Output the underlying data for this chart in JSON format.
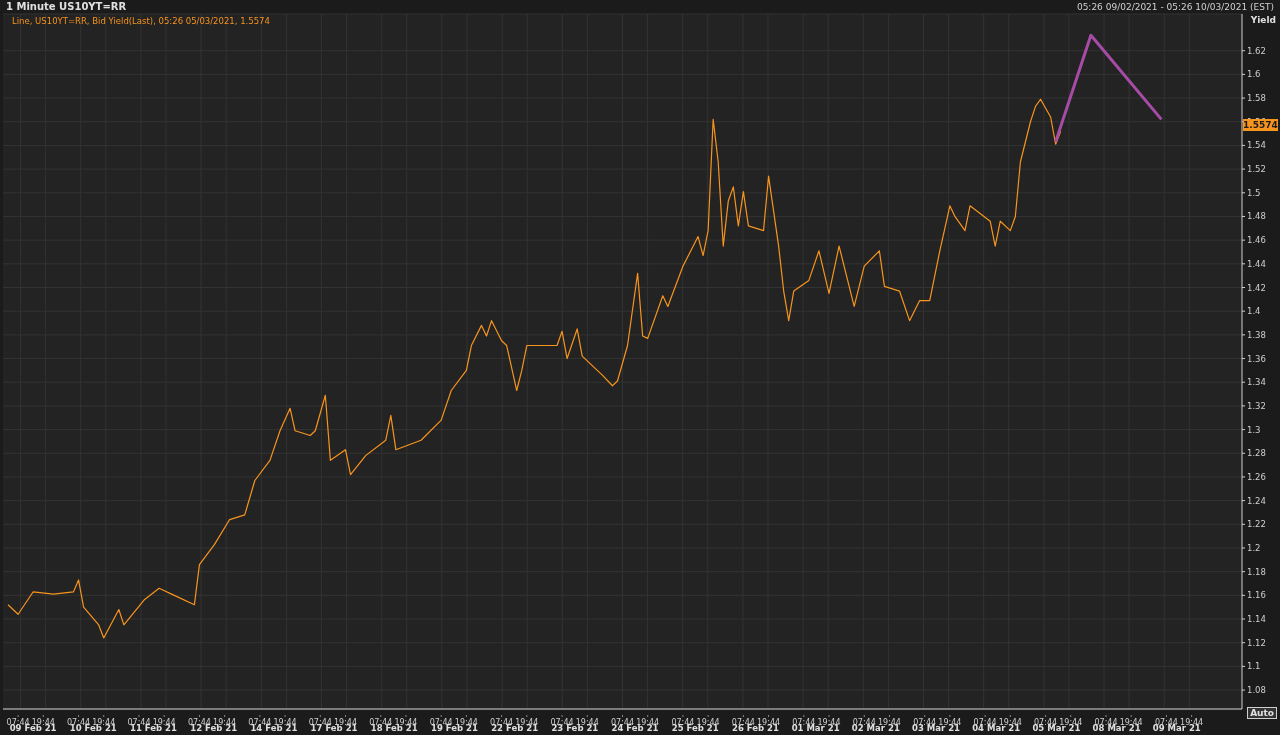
{
  "chart_data": {
    "type": "line",
    "title": "1 Minute US10YT=RR",
    "subtitle": "Line, US10YT=RR, Bid Yield(Last), 05:26 05/03/2021, 1.5574",
    "ylabel": "Yield",
    "annotations": [
      "05:26 09/02/2021 - 05:26 10/03/2021 (EST)",
      "Auto",
      "09 Feb 21",
      "10 Feb 21",
      "11 Feb 21",
      "12 Feb 21",
      "14 Feb 21",
      "17 Feb 21",
      "18 Feb 21",
      "19 Feb 21",
      "22 Feb 21",
      "23 Feb 21",
      "24 Feb 21",
      "25 Feb 21",
      "26 Feb 21",
      "01 Mar 21",
      "02 Mar 21",
      "03 Mar 21",
      "04 Mar 21",
      "05 Mar 21",
      "08 Mar 21",
      "09 Mar 21",
      {
        "text": "1.5574",
        "y": 1.5574
      }
    ],
    "categories": [
      null,
      null,
      null,
      "07:44",
      null,
      null,
      null,
      null,
      "19:44",
      null,
      null,
      null,
      null,
      null,
      null,
      "07:44",
      null,
      null,
      null,
      null,
      "19:44",
      null,
      null,
      null,
      null,
      null,
      null,
      "07:44",
      null,
      null,
      null,
      null,
      "19:44",
      null,
      null,
      null,
      null,
      null,
      null,
      "07:44",
      null,
      null,
      null,
      null,
      "19:44",
      null,
      null,
      null,
      null,
      null,
      null,
      "07:44",
      null,
      null,
      null,
      null,
      "19:44",
      null,
      null,
      null,
      null,
      null,
      null,
      "07:44",
      null,
      null,
      null,
      null,
      "19:44",
      null,
      null,
      null,
      null,
      null,
      null,
      "07:44",
      null,
      null,
      null,
      null,
      "19:44",
      null,
      null,
      null,
      null,
      null,
      null,
      "07:44",
      null,
      null,
      null,
      null,
      "19:44",
      null,
      null,
      null,
      null,
      null,
      null,
      "07:44",
      null,
      null,
      null,
      null,
      "19:44",
      null,
      null,
      null,
      null,
      null,
      null,
      "07:44",
      null,
      null,
      null,
      null,
      "19:44",
      null,
      null,
      null,
      null,
      null,
      null,
      "07:44",
      null,
      null,
      null,
      null,
      "19:44",
      null,
      null,
      null,
      null,
      null,
      null,
      "07:44",
      null,
      null,
      null,
      null,
      "19:44",
      null,
      null,
      null,
      null,
      null,
      null,
      "07:44",
      null,
      null,
      null,
      null,
      "19:44",
      null,
      null,
      null,
      null,
      null,
      null,
      "07:44",
      null,
      null,
      null,
      null,
      "19:44",
      null,
      null,
      null,
      null,
      null,
      null,
      "07:44",
      null,
      null,
      null,
      null,
      "19:44",
      null,
      null,
      null,
      null,
      null,
      null,
      "07:44",
      null,
      null,
      null,
      null,
      "19:44",
      null,
      null,
      null,
      null,
      null,
      null,
      "07:44",
      null,
      null,
      null,
      null,
      "19:44",
      null,
      null,
      null,
      null,
      null,
      null,
      "07:44",
      null,
      null,
      null,
      null,
      "19:44",
      null,
      null,
      null,
      null,
      null,
      null,
      "07:44",
      null,
      null,
      null,
      null,
      "19:44",
      null,
      null,
      null,
      null,
      null,
      null,
      "07:44",
      null,
      null,
      null,
      null,
      "19:44",
      null,
      null,
      null,
      null,
      null,
      null,
      null,
      null,
      null,
      null
    ],
    "series": [
      {
        "color": "#f7941d",
        "values": [
          null,
          1.152,
          null,
          1.144,
          null,
          null,
          1.163,
          null,
          null,
          null,
          1.161,
          null,
          null,
          null,
          1.163,
          1.173,
          1.15,
          null,
          null,
          1.135,
          1.124,
          null,
          null,
          1.148,
          1.135,
          null,
          null,
          null,
          1.156,
          null,
          null,
          1.166,
          null,
          null,
          1.16,
          null,
          null,
          null,
          1.152,
          1.186,
          null,
          null,
          1.203,
          null,
          null,
          1.224,
          null,
          null,
          1.228,
          null,
          1.257,
          null,
          null,
          1.274,
          null,
          1.299,
          null,
          1.318,
          1.299,
          null,
          null,
          1.295,
          1.299,
          null,
          1.329,
          1.274,
          null,
          null,
          1.283,
          1.262,
          null,
          null,
          1.278,
          null,
          null,
          null,
          1.291,
          1.312,
          1.283,
          null,
          null,
          null,
          null,
          1.291,
          null,
          null,
          null,
          1.308,
          null,
          1.333,
          null,
          null,
          1.35,
          1.371,
          null,
          1.388,
          1.379,
          1.392,
          null,
          1.375,
          1.371,
          null,
          1.333,
          1.35,
          1.371,
          null,
          null,
          null,
          null,
          null,
          1.371,
          1.383,
          1.36,
          null,
          1.385,
          1.362,
          null,
          null,
          null,
          1.346,
          null,
          1.337,
          1.341,
          null,
          1.371,
          null,
          1.432,
          1.379,
          1.377,
          null,
          null,
          1.413,
          1.404,
          null,
          null,
          1.438,
          null,
          null,
          1.463,
          1.447,
          1.468,
          1.562,
          1.526,
          1.455,
          1.493,
          1.505,
          1.472,
          1.501,
          1.472,
          null,
          null,
          1.468,
          1.514,
          null,
          1.455,
          1.417,
          1.392,
          1.417,
          null,
          null,
          1.426,
          null,
          1.451,
          null,
          1.415,
          null,
          1.455,
          null,
          null,
          1.404,
          null,
          1.438,
          null,
          null,
          1.451,
          1.421,
          null,
          null,
          1.417,
          null,
          1.392,
          null,
          1.409,
          null,
          1.409,
          null,
          1.451,
          null,
          1.489,
          1.48,
          null,
          1.468,
          1.489,
          null,
          null,
          null,
          1.476,
          1.455,
          1.476,
          null,
          1.468,
          1.48,
          1.526,
          null,
          1.56,
          1.573,
          1.579,
          null,
          1.564,
          1.541,
          1.552,
          null,
          null,
          null,
          null,
          null,
          null,
          null,
          null,
          null,
          null,
          null,
          null,
          null,
          null,
          null,
          null,
          null,
          null,
          null,
          null,
          null,
          null,
          null,
          null,
          null,
          null,
          null,
          null,
          null,
          null,
          null,
          null,
          null,
          null,
          null,
          null
        ]
      },
      {
        "color": "#a64ca6",
        "values": [
          null,
          null,
          null,
          null,
          null,
          null,
          null,
          null,
          null,
          null,
          null,
          null,
          null,
          null,
          null,
          null,
          null,
          null,
          null,
          null,
          null,
          null,
          null,
          null,
          null,
          null,
          null,
          null,
          null,
          null,
          null,
          null,
          null,
          null,
          null,
          null,
          null,
          null,
          null,
          null,
          null,
          null,
          null,
          null,
          null,
          null,
          null,
          null,
          null,
          null,
          null,
          null,
          null,
          null,
          null,
          null,
          null,
          null,
          null,
          null,
          null,
          null,
          null,
          null,
          null,
          null,
          null,
          null,
          null,
          null,
          null,
          null,
          null,
          null,
          null,
          null,
          null,
          null,
          null,
          null,
          null,
          null,
          null,
          null,
          null,
          null,
          null,
          null,
          null,
          null,
          null,
          null,
          null,
          null,
          null,
          null,
          null,
          null,
          null,
          null,
          null,
          null,
          null,
          null,
          null,
          null,
          null,
          null,
          null,
          null,
          null,
          null,
          null,
          null,
          null,
          null,
          null,
          null,
          null,
          null,
          null,
          null,
          null,
          null,
          null,
          null,
          null,
          null,
          null,
          null,
          null,
          null,
          null,
          null,
          null,
          null,
          null,
          null,
          null,
          null,
          null,
          null,
          null,
          null,
          null,
          null,
          null,
          null,
          null,
          null,
          null,
          null,
          null,
          null,
          null,
          null,
          null,
          null,
          null,
          null,
          null,
          null,
          null,
          null,
          null,
          null,
          null,
          null,
          null,
          null,
          null,
          null,
          null,
          null,
          null,
          null,
          null,
          null,
          null,
          null,
          null,
          null,
          null,
          null,
          null,
          null,
          null,
          null,
          null,
          null,
          null,
          null,
          null,
          null,
          null,
          null,
          null,
          null,
          null,
          null,
          null,
          null,
          null,
          null,
          null,
          null,
          null,
          null,
          null,
          1.543,
          null,
          null,
          null,
          null,
          null,
          null,
          1.633,
          null,
          null,
          null,
          null,
          null,
          null,
          null,
          null,
          null,
          null,
          null,
          null,
          null,
          1.562,
          null,
          null,
          null,
          null,
          null,
          null,
          null,
          null,
          null,
          null,
          null,
          null,
          null,
          null,
          null,
          null
        ]
      }
    ],
    "ylim": [
      1.064,
      1.651
    ],
    "yticks": [
      1.08,
      1.1,
      1.12,
      1.14,
      1.16,
      1.18,
      1.2,
      1.22,
      1.24,
      1.26,
      1.28,
      1.3,
      1.32,
      1.34,
      1.36,
      1.38,
      1.4,
      1.42,
      1.44,
      1.46,
      1.48,
      1.5,
      1.52,
      1.54,
      1.56,
      1.58,
      1.6,
      1.62
    ],
    "grid": true,
    "marker": "none",
    "line_style": "solid"
  }
}
